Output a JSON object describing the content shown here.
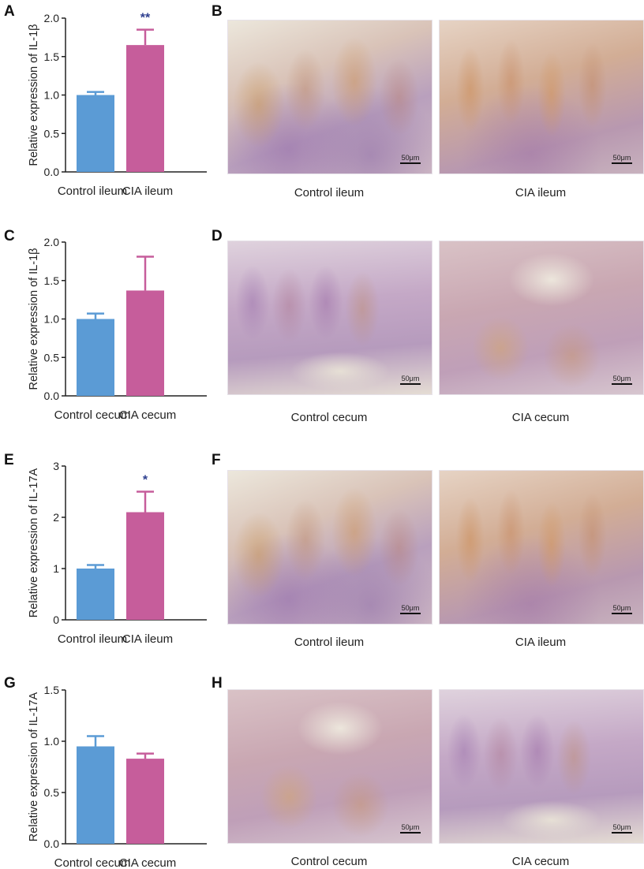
{
  "panels": {
    "A": "A",
    "B": "B",
    "C": "C",
    "D": "D",
    "E": "E",
    "F": "F",
    "G": "G",
    "H": "H"
  },
  "colors": {
    "control": "#5b9bd5",
    "cia": "#c65d9b",
    "significance": "#2e3f8f"
  },
  "chart_data": [
    {
      "panel": "A",
      "type": "bar",
      "categories": [
        "Control ileum",
        "CIA ileum"
      ],
      "values": [
        1.0,
        1.65
      ],
      "errors": [
        0.04,
        0.2
      ],
      "ylabel": "Relative expression of IL-1β",
      "ylim": [
        0,
        2.0
      ],
      "yticks": [
        "0.0",
        "0.5",
        "1.0",
        "1.5",
        "2.0"
      ],
      "significance": [
        "",
        "**"
      ]
    },
    {
      "panel": "C",
      "type": "bar",
      "categories": [
        "Control cecum",
        "CIA cecum"
      ],
      "values": [
        1.0,
        1.37
      ],
      "errors": [
        0.07,
        0.44
      ],
      "ylabel": "Relative expression of IL-1β",
      "ylim": [
        0,
        2.0
      ],
      "yticks": [
        "0.0",
        "0.5",
        "1.0",
        "1.5",
        "2.0"
      ],
      "significance": [
        "",
        ""
      ]
    },
    {
      "panel": "E",
      "type": "bar",
      "categories": [
        "Control ileum",
        "CIA ileum"
      ],
      "values": [
        1.0,
        2.1
      ],
      "errors": [
        0.07,
        0.4
      ],
      "ylabel": "Relative expression of IL-17A",
      "ylim": [
        0,
        3
      ],
      "yticks": [
        "0",
        "1",
        "2",
        "3"
      ],
      "significance": [
        "",
        "*"
      ]
    },
    {
      "panel": "G",
      "type": "bar",
      "categories": [
        "Control cecum",
        "CIA cecum"
      ],
      "values": [
        0.95,
        0.83
      ],
      "errors": [
        0.1,
        0.05
      ],
      "ylabel": "Relative expression of IL-17A",
      "ylim": [
        0,
        1.5
      ],
      "yticks": [
        "0.0",
        "0.5",
        "1.0",
        "1.5"
      ],
      "significance": [
        "",
        ""
      ]
    }
  ],
  "images": {
    "B": [
      "Control ileum",
      "CIA ileum"
    ],
    "D": [
      "Control cecum",
      "CIA cecum"
    ],
    "F": [
      "Control ileum",
      "CIA ileum"
    ],
    "H": [
      "Control cecum",
      "CIA cecum"
    ]
  },
  "scale_label": "50μm"
}
